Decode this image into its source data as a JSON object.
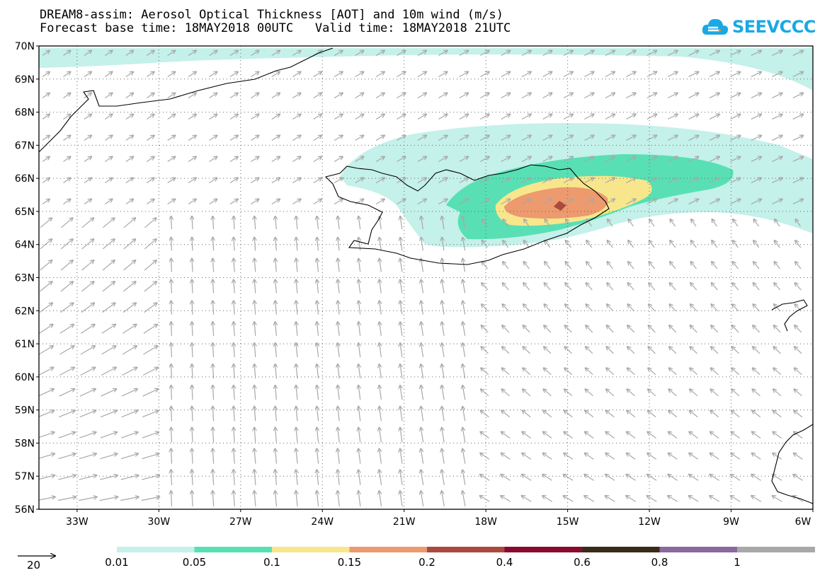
{
  "header": {
    "title_line1": "DREAM8-assim: Aerosol Optical Thickness [AOT] and 10m wind (m/s)",
    "title_line2": "Forecast base time: 18MAY2018 00UTC   Valid time: 18MAY2018 21UTC"
  },
  "logo": {
    "text": "SEEVCCC",
    "icon": "cloud-icon",
    "color": "#1aa9e4"
  },
  "map": {
    "lat_labels": [
      "70N",
      "69N",
      "68N",
      "67N",
      "66N",
      "65N",
      "64N",
      "63N",
      "62N",
      "61N",
      "60N",
      "59N",
      "58N",
      "57N",
      "56N"
    ],
    "lon_labels": [
      "33W",
      "30W",
      "27W",
      "24W",
      "21W",
      "18W",
      "15W",
      "12W",
      "9W",
      "6W"
    ],
    "lat_range": [
      56,
      70
    ],
    "lon_range": [
      -34.4,
      -6
    ],
    "grid_style": "dotted",
    "wind_arrow_color": "#a8a8a8",
    "coastline_color": "#000000"
  },
  "wind_reference": {
    "speed": "20"
  },
  "legend": {
    "labels": [
      "0.01",
      "0.05",
      "0.1",
      "0.15",
      "0.2",
      "0.4",
      "0.6",
      "0.8",
      "1"
    ],
    "colors": [
      "#c4f1ea",
      "#58e0b4",
      "#f8e68c",
      "#ec9a6e",
      "#aa4a3e",
      "#8a0a2e",
      "#3a2a1a",
      "#8a68a0",
      "#a8a8a8"
    ]
  }
}
